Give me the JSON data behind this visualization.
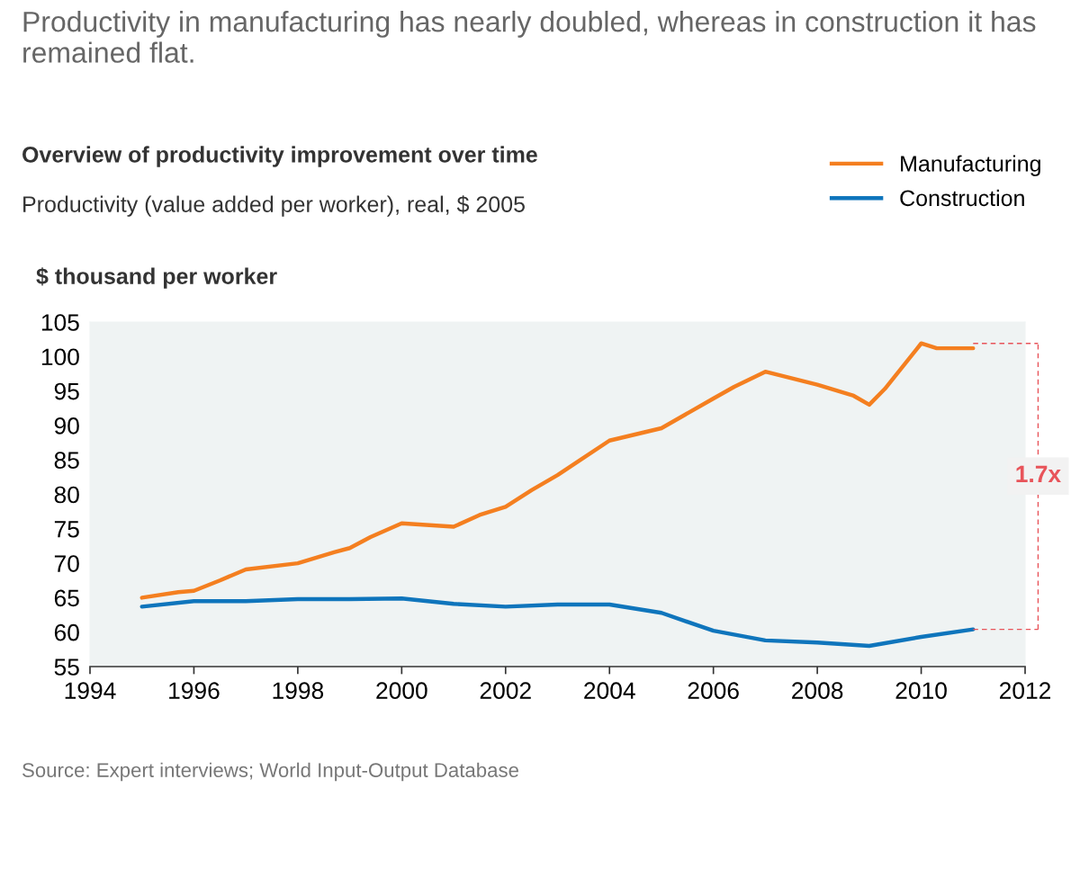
{
  "chart_data": {
    "type": "line",
    "title": "Productivity in manufacturing has nearly doubled, whereas in construction it has remained flat.",
    "subtitle": "Overview of productivity improvement over time",
    "ylabel": "$ thousand per worker",
    "annotations": [
      "Productivity (value added per worker), real, $ 2005",
      "1.7x",
      "Source: Expert interviews; World Input-Output Database"
    ],
    "series": [
      {
        "name": "Manufacturing",
        "color": "#f47f20",
        "x": [
          1995,
          1995.7,
          1996,
          1996.5,
          1997,
          1998,
          1998.7,
          1999,
          1999.4,
          2000,
          2001,
          2001.5,
          2002,
          2002.5,
          2003,
          2004,
          2005,
          2006,
          2006.4,
          2007,
          2008,
          2008.7,
          2009,
          2009.3,
          2010,
          2010.3,
          2011
        ],
        "values": [
          65.0,
          65.8,
          66.0,
          67.5,
          69.1,
          70.0,
          71.6,
          72.2,
          73.8,
          75.8,
          75.3,
          77.0,
          78.2,
          80.6,
          82.8,
          87.8,
          89.6,
          93.9,
          95.6,
          97.8,
          95.9,
          94.3,
          93.0,
          95.3,
          101.9,
          101.2,
          101.2
        ]
      },
      {
        "name": "Construction",
        "color": "#0f75bc",
        "x": [
          1995,
          1996,
          1997,
          1998,
          1999,
          2000,
          2001,
          2002,
          2003,
          2004,
          2005,
          2006,
          2007,
          2008,
          2009,
          2010,
          2011
        ],
        "values": [
          63.7,
          64.5,
          64.5,
          64.8,
          64.8,
          64.9,
          64.1,
          63.7,
          64.0,
          64.0,
          62.8,
          60.2,
          58.8,
          58.5,
          58.0,
          59.3,
          60.4
        ]
      }
    ],
    "xlim": [
      1994,
      2012
    ],
    "xticks": [
      1994,
      1996,
      1998,
      2000,
      2002,
      2004,
      2006,
      2008,
      2010,
      2012
    ],
    "ylim": [
      55,
      105
    ],
    "yticks": [
      55,
      60,
      65,
      70,
      75,
      80,
      85,
      90,
      95,
      100,
      105
    ],
    "grid": false,
    "legend": "top right",
    "marker": "none",
    "line_style": "solid"
  }
}
